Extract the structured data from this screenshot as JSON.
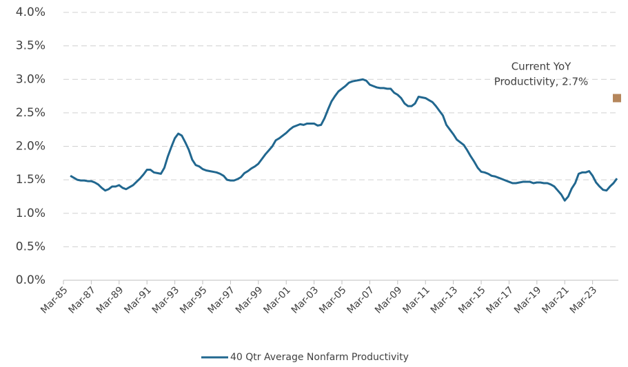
{
  "chart_data": {
    "type": "line",
    "categories": [
      "Mar-85",
      null,
      null,
      null,
      null,
      null,
      null,
      null,
      "Mar-87",
      null,
      null,
      null,
      null,
      null,
      null,
      null,
      "Mar-89",
      null,
      null,
      null,
      null,
      null,
      null,
      null,
      "Mar-91",
      null,
      null,
      null,
      null,
      null,
      null,
      null,
      "Mar-93",
      null,
      null,
      null,
      null,
      null,
      null,
      null,
      "Mar-95",
      null,
      null,
      null,
      null,
      null,
      null,
      null,
      "Mar-97",
      null,
      null,
      null,
      null,
      null,
      null,
      null,
      "Mar-99",
      null,
      null,
      null,
      null,
      null,
      null,
      null,
      "Mar-01",
      null,
      null,
      null,
      null,
      null,
      null,
      null,
      "Mar-03",
      null,
      null,
      null,
      null,
      null,
      null,
      null,
      "Mar-05",
      null,
      null,
      null,
      null,
      null,
      null,
      null,
      "Mar-07",
      null,
      null,
      null,
      null,
      null,
      null,
      null,
      "Mar-09",
      null,
      null,
      null,
      null,
      null,
      null,
      null,
      "Mar-11",
      null,
      null,
      null,
      null,
      null,
      null,
      null,
      "Mar-13",
      null,
      null,
      null,
      null,
      null,
      null,
      null,
      "Mar-15",
      null,
      null,
      null,
      null,
      null,
      null,
      null,
      "Mar-17",
      null,
      null,
      null,
      null,
      null,
      null,
      null,
      "Mar-19",
      null,
      null,
      null,
      null,
      null,
      null,
      null,
      "Mar-21",
      null,
      null,
      null,
      null,
      null,
      null,
      null,
      "Mar-23",
      null,
      null,
      null,
      null,
      null,
      null,
      null
    ],
    "series": [
      {
        "name": "40 Qtr Average Nonfarm Productivity",
        "color": "#21678f",
        "values": [
          null,
          null,
          1.56,
          1.53,
          1.5,
          1.49,
          1.49,
          1.48,
          1.48,
          1.46,
          1.43,
          1.38,
          1.34,
          1.36,
          1.4,
          1.4,
          1.42,
          1.38,
          1.36,
          1.39,
          1.42,
          1.47,
          1.52,
          1.58,
          1.65,
          1.65,
          1.61,
          1.6,
          1.59,
          1.68,
          1.85,
          1.99,
          2.12,
          2.19,
          2.16,
          2.06,
          1.95,
          1.8,
          1.72,
          1.7,
          1.66,
          1.64,
          1.63,
          1.62,
          1.61,
          1.59,
          1.56,
          1.5,
          1.49,
          1.49,
          1.51,
          1.54,
          1.6,
          1.63,
          1.67,
          1.7,
          1.74,
          1.81,
          1.88,
          1.94,
          2.0,
          2.09,
          2.12,
          2.16,
          2.2,
          2.25,
          2.29,
          2.31,
          2.33,
          2.32,
          2.34,
          2.34,
          2.34,
          2.31,
          2.32,
          2.42,
          2.55,
          2.67,
          2.75,
          2.82,
          2.86,
          2.9,
          2.95,
          2.97,
          2.98,
          2.99,
          3.0,
          2.98,
          2.92,
          2.9,
          2.88,
          2.87,
          2.87,
          2.86,
          2.86,
          2.8,
          2.77,
          2.72,
          2.64,
          2.6,
          2.6,
          2.64,
          2.74,
          2.73,
          2.72,
          2.69,
          2.66,
          2.6,
          2.53,
          2.46,
          2.32,
          2.25,
          2.18,
          2.1,
          2.06,
          2.02,
          1.94,
          1.85,
          1.77,
          1.68,
          1.62,
          1.61,
          1.59,
          1.56,
          1.55,
          1.53,
          1.51,
          1.49,
          1.47,
          1.45,
          1.45,
          1.46,
          1.47,
          1.47,
          1.47,
          1.45,
          1.46,
          1.46,
          1.45,
          1.45,
          1.43,
          1.4,
          1.34,
          1.28,
          1.19,
          1.25,
          1.37,
          1.45,
          1.59,
          1.61,
          1.61,
          1.63,
          1.56,
          1.46,
          1.4,
          1.35,
          1.34,
          1.4,
          1.45,
          1.52
        ]
      }
    ],
    "point": {
      "label": [
        "Current YoY",
        "Productivity, 2.7%"
      ],
      "value": 2.72,
      "color": "#b5865b"
    },
    "ylim": [
      0,
      4
    ],
    "yticks": [
      {
        "value": 0,
        "label": "0.0%"
      },
      {
        "value": 0.5,
        "label": "0.5%"
      },
      {
        "value": 1,
        "label": "1.0%"
      },
      {
        "value": 1.5,
        "label": "1.5%"
      },
      {
        "value": 2,
        "label": "2.0%"
      },
      {
        "value": 2.5,
        "label": "2.5%"
      },
      {
        "value": 3,
        "label": "3.0%"
      },
      {
        "value": 3.5,
        "label": "3.5%"
      },
      {
        "value": 4,
        "label": "4.0%"
      }
    ],
    "grid": true,
    "legend": "bottom"
  }
}
